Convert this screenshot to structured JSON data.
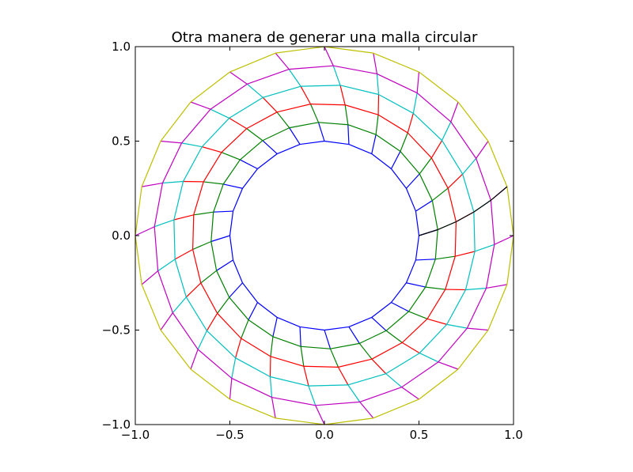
{
  "chart_data": {
    "type": "line",
    "title": "Otra manera de generar una malla circular",
    "xlabel": "",
    "ylabel": "",
    "xlim": [
      -1.0,
      1.0
    ],
    "ylim": [
      -1.0,
      1.0
    ],
    "x_ticks": [
      -1.0,
      -0.5,
      0.0,
      0.5,
      1.0
    ],
    "y_ticks": [
      -1.0,
      -0.5,
      0.0,
      0.5,
      1.0
    ],
    "x_tick_labels": [
      "−1.0",
      "−0.5",
      "0.0",
      "0.5",
      "1.0"
    ],
    "y_tick_labels": [
      "−1.0",
      "−0.5",
      "0.0",
      "0.5",
      "1.0"
    ],
    "grid": false,
    "legend": "none",
    "mesh": {
      "rings": 6,
      "segments": 24,
      "r_inner": 0.5,
      "r_outer": 1.0,
      "twist_deg": 15,
      "colors": [
        "#0000ff",
        "#008000",
        "#ff0000",
        "#00bfbf",
        "#bf00bf",
        "#bfbf00",
        "#000000"
      ]
    }
  }
}
